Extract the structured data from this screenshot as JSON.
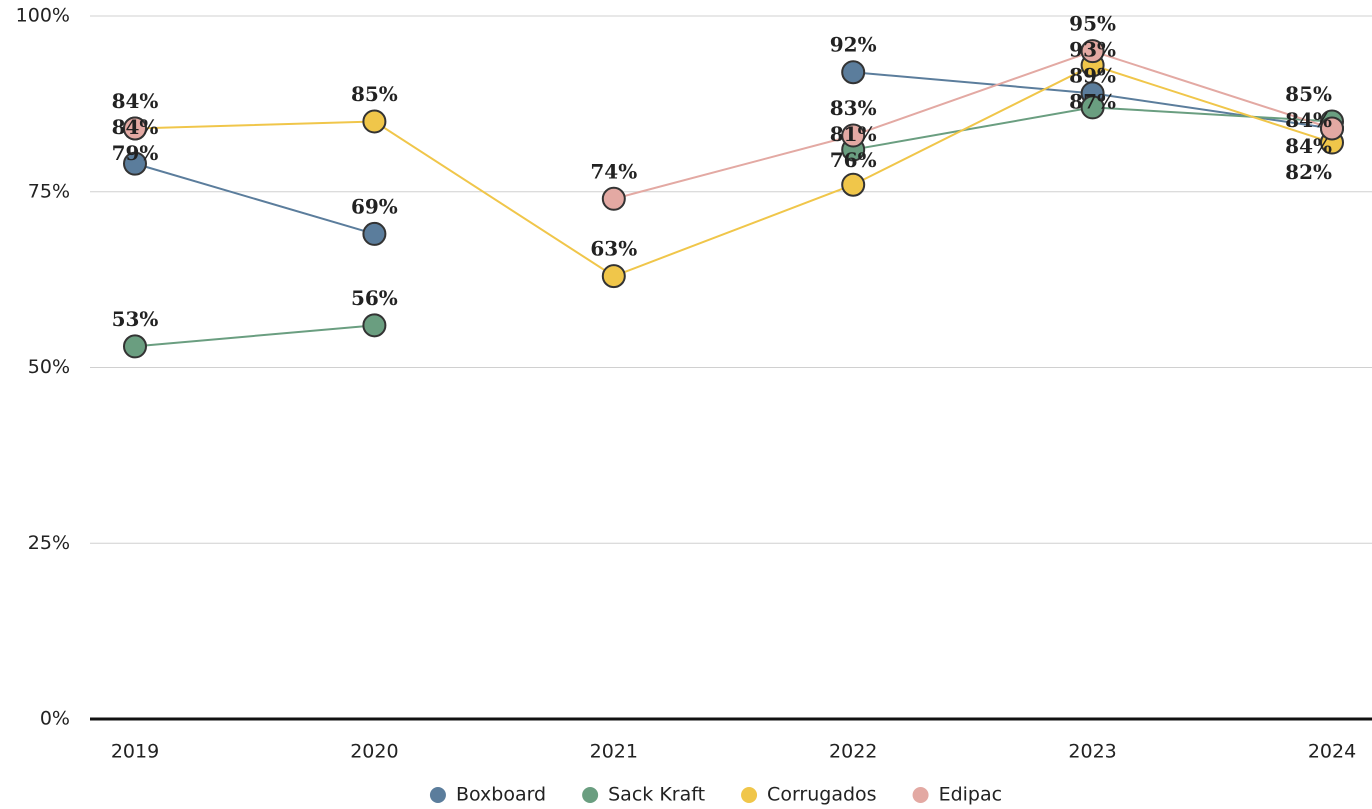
{
  "chart_data": {
    "type": "line",
    "categories": [
      "2019",
      "2020",
      "2021",
      "2022",
      "2023",
      "2024"
    ],
    "series": [
      {
        "name": "Boxboard",
        "color": "#5b7d9c",
        "values": [
          79,
          69,
          null,
          92,
          89,
          84
        ],
        "value_labels": [
          "79%",
          "69%",
          null,
          "92%",
          "89%",
          "84%"
        ]
      },
      {
        "name": "Sack Kraft",
        "color": "#6a9e80",
        "values": [
          53,
          56,
          null,
          81,
          87,
          85
        ],
        "value_labels": [
          "53%",
          "56%",
          null,
          "81%",
          "87%",
          "85%"
        ]
      },
      {
        "name": "Corrugados",
        "color": "#f0c64a",
        "values": [
          84,
          85,
          63,
          76,
          93,
          82
        ],
        "value_labels": [
          "84%",
          "85%",
          "63%",
          "76%",
          "93%",
          "82%"
        ]
      },
      {
        "name": "Edipac",
        "color": "#e3a9a3",
        "values": [
          84,
          null,
          74,
          83,
          95,
          84
        ],
        "value_labels": [
          "84%",
          null,
          "74%",
          "83%",
          "95%",
          "84%"
        ]
      }
    ],
    "ylim": [
      0,
      100
    ],
    "yticks": [
      {
        "value": 0,
        "label": "0%"
      },
      {
        "value": 25,
        "label": "25%"
      },
      {
        "value": 50,
        "label": "50%"
      },
      {
        "value": 75,
        "label": "75%"
      },
      {
        "value": 100,
        "label": "100%"
      }
    ],
    "grid": true,
    "legend": "bottom"
  }
}
